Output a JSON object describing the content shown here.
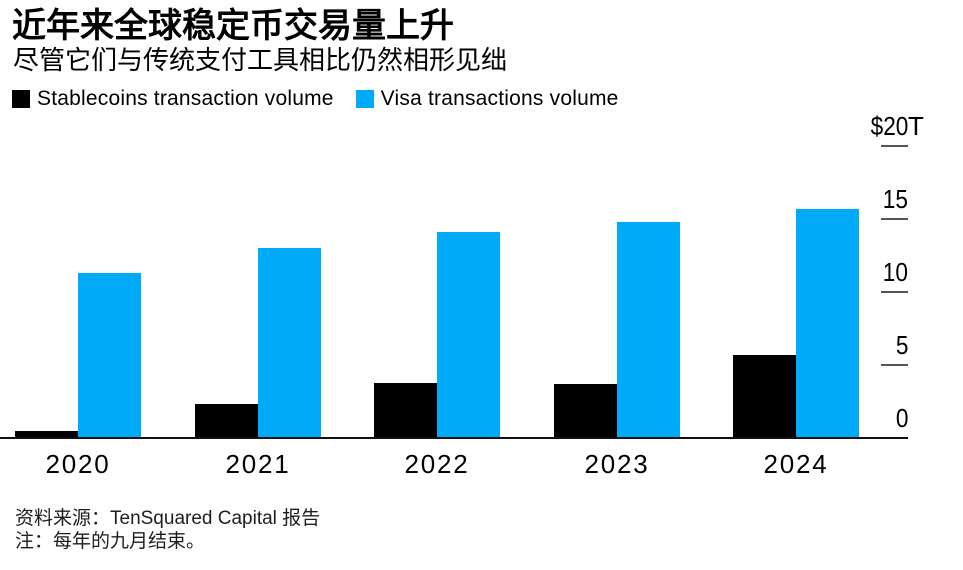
{
  "header": {
    "title": "近年来全球稳定币交易量上升",
    "subtitle": "尽管它们与传统支付工具相比仍然相形见绌"
  },
  "legend": {
    "items": [
      {
        "label": "Stablecoins transaction volume",
        "color": "#000000"
      },
      {
        "label": "Visa transactions volume",
        "color": "#00aaf8"
      }
    ]
  },
  "chart_data": {
    "type": "bar",
    "title": "近年来全球稳定币交易量上升",
    "subtitle": "尽管它们与传统支付工具相比仍然相形见绌",
    "categories": [
      "2020",
      "2021",
      "2022",
      "2023",
      "2024"
    ],
    "series": [
      {
        "name": "Stablecoins transaction volume",
        "color": "#000000",
        "values": [
          0.5,
          2.3,
          3.8,
          3.7,
          5.7
        ]
      },
      {
        "name": "Visa transactions volume",
        "color": "#00aaf8",
        "values": [
          11.3,
          13.0,
          14.1,
          14.8,
          15.7
        ]
      }
    ],
    "ylabel": "",
    "xlabel": "",
    "unit": "$T",
    "ylim": [
      0,
      20
    ],
    "y_axis": {
      "side": "right",
      "ticks": [
        {
          "value": 0,
          "text": "0",
          "suffix_overhang": ""
        },
        {
          "value": 5,
          "text": "5",
          "suffix_overhang": ""
        },
        {
          "value": 10,
          "text": "10",
          "suffix_overhang": ""
        },
        {
          "value": 15,
          "text": "15",
          "suffix_overhang": ""
        },
        {
          "value": 20,
          "text": "$20",
          "suffix_overhang": "T"
        }
      ]
    },
    "grid": "off",
    "legend_position": "top-left"
  },
  "footer": {
    "source": "资料来源：TenSquared Capital 报告",
    "note": "注：每年的九月结束。"
  }
}
